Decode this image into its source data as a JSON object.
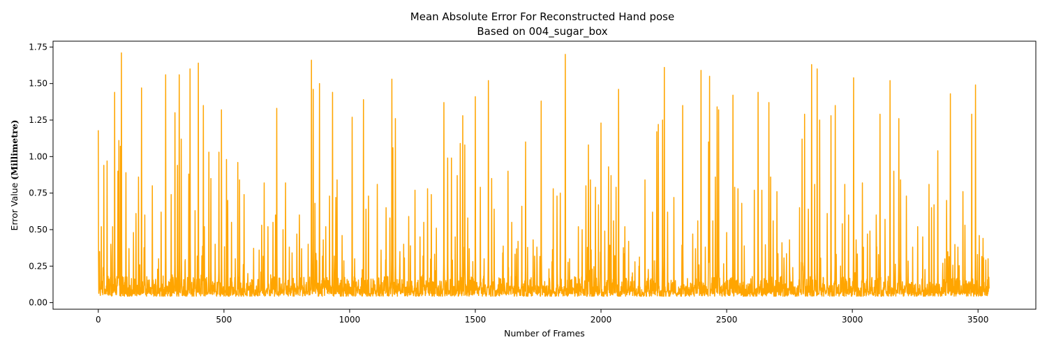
{
  "chart_data": {
    "type": "line",
    "title": "Mean Absolute Error For Reconstructed Hand pose",
    "subtitle": "Based on 004_sugar_box",
    "xlabel": "Number of Frames",
    "ylabel_prefix": "Error Value ",
    "ylabel_unit": "(Millimetre)",
    "xlim": [
      -180,
      3730
    ],
    "ylim": [
      -0.045,
      1.79
    ],
    "xticks": [
      0,
      500,
      1000,
      1500,
      2000,
      2500,
      3000,
      3500
    ],
    "xtick_labels": [
      "0",
      "500",
      "1000",
      "1500",
      "2000",
      "2500",
      "3000",
      "3500"
    ],
    "yticks": [
      0.0,
      0.25,
      0.5,
      0.75,
      1.0,
      1.25,
      1.5,
      1.75
    ],
    "ytick_labels": [
      "0.00",
      "0.25",
      "0.50",
      "0.75",
      "1.00",
      "1.25",
      "1.50",
      "1.75"
    ],
    "grid": false,
    "legend": "none",
    "series_color": "#ffa500",
    "n_frames": 3545,
    "baseline_range": [
      0.02,
      0.18
    ],
    "spikes": [
      [
        0,
        1.18
      ],
      [
        5,
        0.35
      ],
      [
        12,
        0.52
      ],
      [
        22,
        0.94
      ],
      [
        35,
        0.97
      ],
      [
        50,
        0.4
      ],
      [
        57,
        0.52
      ],
      [
        65,
        1.44
      ],
      [
        78,
        0.9
      ],
      [
        82,
        1.11
      ],
      [
        88,
        1.07
      ],
      [
        92,
        1.71
      ],
      [
        110,
        0.89
      ],
      [
        122,
        0.37
      ],
      [
        140,
        0.48
      ],
      [
        150,
        0.61
      ],
      [
        160,
        0.86
      ],
      [
        172,
        1.47
      ],
      [
        185,
        0.6
      ],
      [
        215,
        0.8
      ],
      [
        240,
        0.3
      ],
      [
        250,
        0.62
      ],
      [
        268,
        1.56
      ],
      [
        290,
        0.74
      ],
      [
        305,
        1.3
      ],
      [
        315,
        0.94
      ],
      [
        322,
        1.56
      ],
      [
        330,
        1.12
      ],
      [
        345,
        0.28
      ],
      [
        360,
        0.88
      ],
      [
        365,
        1.6
      ],
      [
        385,
        0.63
      ],
      [
        398,
        1.64
      ],
      [
        418,
        1.35
      ],
      [
        422,
        0.52
      ],
      [
        440,
        1.03
      ],
      [
        448,
        0.85
      ],
      [
        465,
        0.4
      ],
      [
        480,
        1.03
      ],
      [
        490,
        1.32
      ],
      [
        510,
        0.98
      ],
      [
        515,
        0.7
      ],
      [
        530,
        0.55
      ],
      [
        545,
        0.3
      ],
      [
        555,
        0.96
      ],
      [
        562,
        0.84
      ],
      [
        580,
        0.74
      ],
      [
        640,
        0.36
      ],
      [
        650,
        0.53
      ],
      [
        660,
        0.82
      ],
      [
        675,
        0.52
      ],
      [
        695,
        0.55
      ],
      [
        705,
        0.6
      ],
      [
        710,
        1.33
      ],
      [
        735,
        0.5
      ],
      [
        745,
        0.82
      ],
      [
        760,
        0.38
      ],
      [
        790,
        0.47
      ],
      [
        800,
        0.6
      ],
      [
        835,
        0.4
      ],
      [
        848,
        1.66
      ],
      [
        855,
        1.46
      ],
      [
        862,
        0.68
      ],
      [
        880,
        1.5
      ],
      [
        895,
        0.43
      ],
      [
        905,
        0.52
      ],
      [
        920,
        0.73
      ],
      [
        932,
        1.44
      ],
      [
        945,
        0.72
      ],
      [
        950,
        0.84
      ],
      [
        970,
        0.46
      ],
      [
        1010,
        1.27
      ],
      [
        1020,
        0.3
      ],
      [
        1055,
        1.39
      ],
      [
        1065,
        0.64
      ],
      [
        1075,
        0.73
      ],
      [
        1110,
        0.81
      ],
      [
        1125,
        0.36
      ],
      [
        1145,
        0.65
      ],
      [
        1160,
        0.58
      ],
      [
        1168,
        1.53
      ],
      [
        1172,
        1.06
      ],
      [
        1182,
        1.26
      ],
      [
        1200,
        0.35
      ],
      [
        1215,
        0.4
      ],
      [
        1235,
        0.59
      ],
      [
        1260,
        0.77
      ],
      [
        1280,
        0.45
      ],
      [
        1295,
        0.55
      ],
      [
        1310,
        0.78
      ],
      [
        1325,
        0.74
      ],
      [
        1345,
        0.51
      ],
      [
        1375,
        1.37
      ],
      [
        1390,
        0.99
      ],
      [
        1405,
        0.99
      ],
      [
        1420,
        0.45
      ],
      [
        1428,
        0.87
      ],
      [
        1440,
        1.09
      ],
      [
        1450,
        1.28
      ],
      [
        1458,
        1.08
      ],
      [
        1470,
        0.58
      ],
      [
        1500,
        1.41
      ],
      [
        1520,
        0.79
      ],
      [
        1535,
        0.3
      ],
      [
        1552,
        1.52
      ],
      [
        1565,
        0.85
      ],
      [
        1575,
        0.64
      ],
      [
        1630,
        0.9
      ],
      [
        1645,
        0.55
      ],
      [
        1670,
        0.42
      ],
      [
        1685,
        0.66
      ],
      [
        1700,
        1.1
      ],
      [
        1730,
        0.43
      ],
      [
        1745,
        0.38
      ],
      [
        1762,
        1.38
      ],
      [
        1810,
        0.78
      ],
      [
        1825,
        0.73
      ],
      [
        1838,
        0.75
      ],
      [
        1858,
        1.7
      ],
      [
        1875,
        0.3
      ],
      [
        1910,
        0.52
      ],
      [
        1925,
        0.5
      ],
      [
        1940,
        0.8
      ],
      [
        1950,
        1.08
      ],
      [
        1958,
        0.84
      ],
      [
        1978,
        0.79
      ],
      [
        1990,
        0.67
      ],
      [
        2000,
        1.23
      ],
      [
        2015,
        0.49
      ],
      [
        2030,
        0.93
      ],
      [
        2040,
        0.87
      ],
      [
        2050,
        0.56
      ],
      [
        2060,
        0.79
      ],
      [
        2070,
        1.46
      ],
      [
        2095,
        0.52
      ],
      [
        2110,
        0.42
      ],
      [
        2135,
        0.28
      ],
      [
        2175,
        0.84
      ],
      [
        2205,
        0.62
      ],
      [
        2222,
        1.17
      ],
      [
        2228,
        1.22
      ],
      [
        2245,
        1.25
      ],
      [
        2252,
        1.61
      ],
      [
        2265,
        0.62
      ],
      [
        2290,
        0.72
      ],
      [
        2325,
        1.35
      ],
      [
        2365,
        0.47
      ],
      [
        2385,
        0.56
      ],
      [
        2398,
        1.59
      ],
      [
        2415,
        0.38
      ],
      [
        2428,
        1.1
      ],
      [
        2432,
        1.55
      ],
      [
        2445,
        0.56
      ],
      [
        2455,
        0.86
      ],
      [
        2462,
        1.34
      ],
      [
        2468,
        1.32
      ],
      [
        2500,
        0.48
      ],
      [
        2525,
        1.42
      ],
      [
        2532,
        0.79
      ],
      [
        2545,
        0.78
      ],
      [
        2560,
        0.68
      ],
      [
        2610,
        0.77
      ],
      [
        2625,
        1.44
      ],
      [
        2640,
        0.77
      ],
      [
        2668,
        1.37
      ],
      [
        2675,
        0.86
      ],
      [
        2685,
        0.56
      ],
      [
        2700,
        0.76
      ],
      [
        2720,
        0.41
      ],
      [
        2750,
        0.43
      ],
      [
        2790,
        0.65
      ],
      [
        2800,
        1.12
      ],
      [
        2810,
        1.29
      ],
      [
        2825,
        0.64
      ],
      [
        2838,
        1.63
      ],
      [
        2850,
        0.81
      ],
      [
        2860,
        1.6
      ],
      [
        2870,
        1.25
      ],
      [
        2900,
        0.61
      ],
      [
        2915,
        1.28
      ],
      [
        2932,
        1.35
      ],
      [
        2960,
        0.54
      ],
      [
        2970,
        0.81
      ],
      [
        2985,
        0.6
      ],
      [
        3005,
        1.54
      ],
      [
        3015,
        0.43
      ],
      [
        3040,
        0.82
      ],
      [
        3060,
        0.47
      ],
      [
        3070,
        0.49
      ],
      [
        3095,
        0.6
      ],
      [
        3110,
        1.29
      ],
      [
        3130,
        0.57
      ],
      [
        3150,
        1.52
      ],
      [
        3165,
        0.9
      ],
      [
        3185,
        1.26
      ],
      [
        3192,
        0.84
      ],
      [
        3215,
        0.73
      ],
      [
        3240,
        0.38
      ],
      [
        3260,
        0.52
      ],
      [
        3280,
        0.45
      ],
      [
        3305,
        0.81
      ],
      [
        3315,
        0.65
      ],
      [
        3325,
        0.67
      ],
      [
        3340,
        1.04
      ],
      [
        3360,
        0.27
      ],
      [
        3375,
        0.7
      ],
      [
        3390,
        1.43
      ],
      [
        3420,
        0.38
      ],
      [
        3440,
        0.76
      ],
      [
        3448,
        0.53
      ],
      [
        3475,
        1.29
      ],
      [
        3490,
        1.49
      ],
      [
        3505,
        0.46
      ],
      [
        3520,
        0.44
      ],
      [
        3540,
        0.3
      ]
    ]
  }
}
